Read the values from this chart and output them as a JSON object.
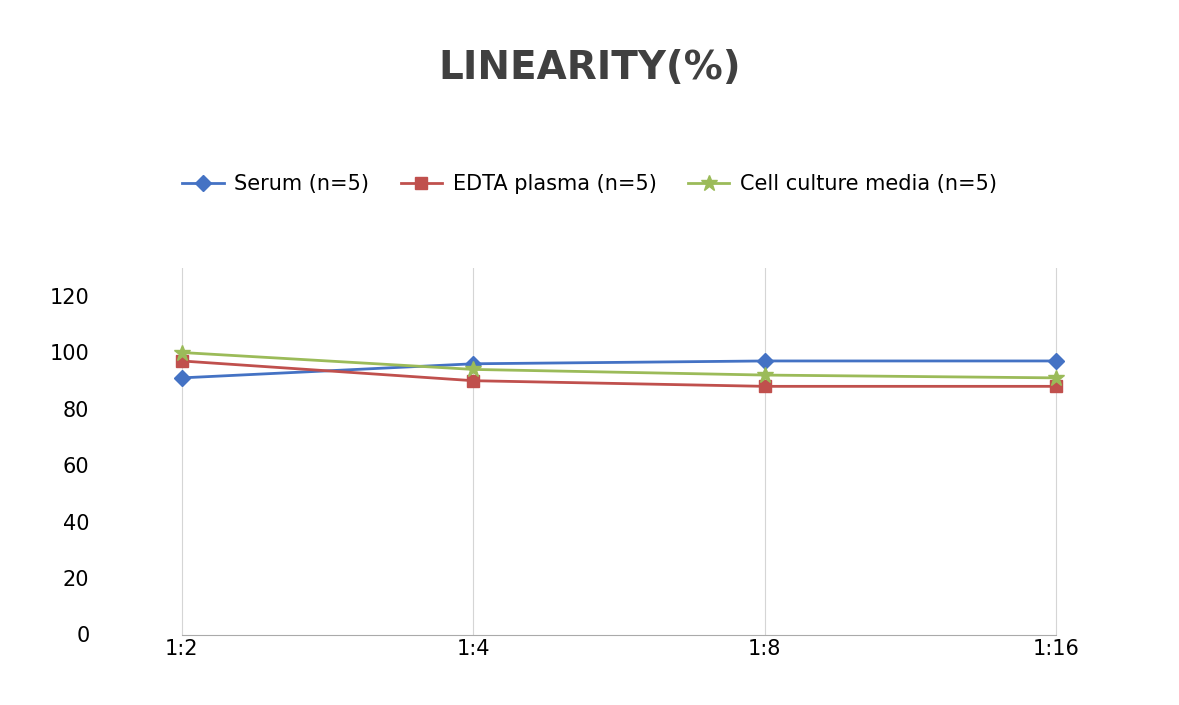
{
  "title": "LINEARITY(%)",
  "x_labels": [
    "1:2",
    "1:4",
    "1:8",
    "1:16"
  ],
  "x_positions": [
    0,
    1,
    2,
    3
  ],
  "series": [
    {
      "label": "Serum (n=5)",
      "values": [
        91,
        96,
        97,
        97
      ],
      "color": "#4472C4",
      "marker": "D",
      "markersize": 8
    },
    {
      "label": "EDTA plasma (n=5)",
      "values": [
        97,
        90,
        88,
        88
      ],
      "color": "#C0504D",
      "marker": "s",
      "markersize": 8
    },
    {
      "label": "Cell culture media (n=5)",
      "values": [
        100,
        94,
        92,
        91
      ],
      "color": "#9BBB59",
      "marker": "*",
      "markersize": 12
    }
  ],
  "ylim": [
    0,
    130
  ],
  "yticks": [
    0,
    20,
    40,
    60,
    80,
    100,
    120
  ],
  "title_fontsize": 28,
  "legend_fontsize": 15,
  "tick_fontsize": 15,
  "background_color": "#ffffff",
  "grid_color": "#d5d5d5",
  "title_color": "#404040"
}
